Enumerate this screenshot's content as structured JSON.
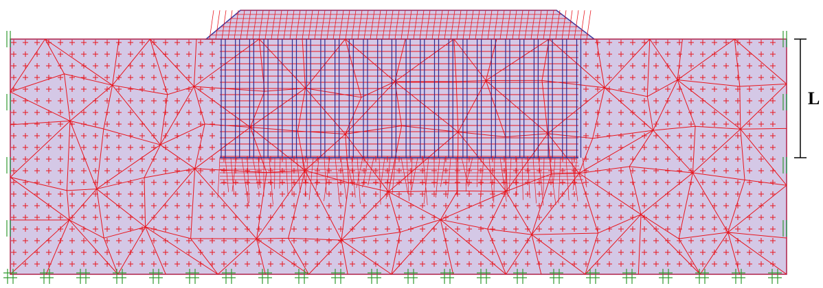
{
  "dimension_label": "L"
}
